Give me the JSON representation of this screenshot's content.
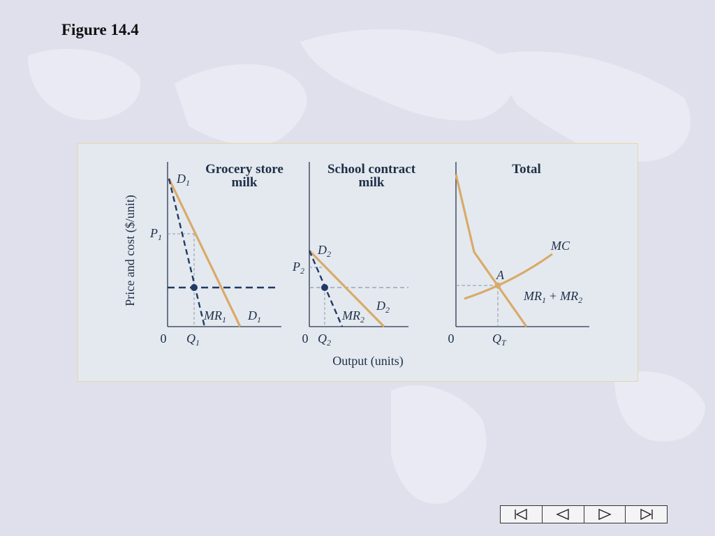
{
  "slide": {
    "title": "Figure 14.4"
  },
  "figure": {
    "y_axis_label": "Price and cost ($/unit)",
    "x_axis_label": "Output (units)",
    "panels": [
      {
        "title_line1": "Grocery store",
        "title_line2": "milk",
        "labels": {
          "demand_top": "D",
          "demand_top_sub": "1",
          "price": "P",
          "price_sub": "1",
          "mr": "MR",
          "mr_sub": "1",
          "demand_bottom": "D",
          "demand_bottom_sub": "1",
          "origin": "0",
          "quantity": "Q",
          "quantity_sub": "1"
        }
      },
      {
        "title_line1": "School contract",
        "title_line2": "milk",
        "labels": {
          "demand_top": "D",
          "demand_top_sub": "2",
          "price": "P",
          "price_sub": "2",
          "mr": "MR",
          "mr_sub": "2",
          "demand_bottom": "D",
          "demand_bottom_sub": "2",
          "origin": "0",
          "quantity": "Q",
          "quantity_sub": "2"
        }
      },
      {
        "title_line1": "Total",
        "labels": {
          "mc": "MC",
          "point": "A",
          "mr_sum_a": "MR",
          "mr_sum_a_sub": "1",
          "plus": "+",
          "mr_sum_b": "MR",
          "mr_sum_b_sub": "2",
          "origin": "0",
          "quantity": "Q",
          "quantity_sub": "T"
        }
      }
    ]
  },
  "colors": {
    "demand_curve": "#d9aa6a",
    "mr_dashed": "#1f3a66",
    "axis": "#2a3550",
    "guide": "#8a98ad",
    "panel_bg": "#e4e9ef"
  },
  "navigation": {
    "first_icon": "skip-to-first-icon",
    "prev_icon": "previous-icon",
    "next_icon": "next-icon",
    "last_icon": "skip-to-last-icon"
  }
}
